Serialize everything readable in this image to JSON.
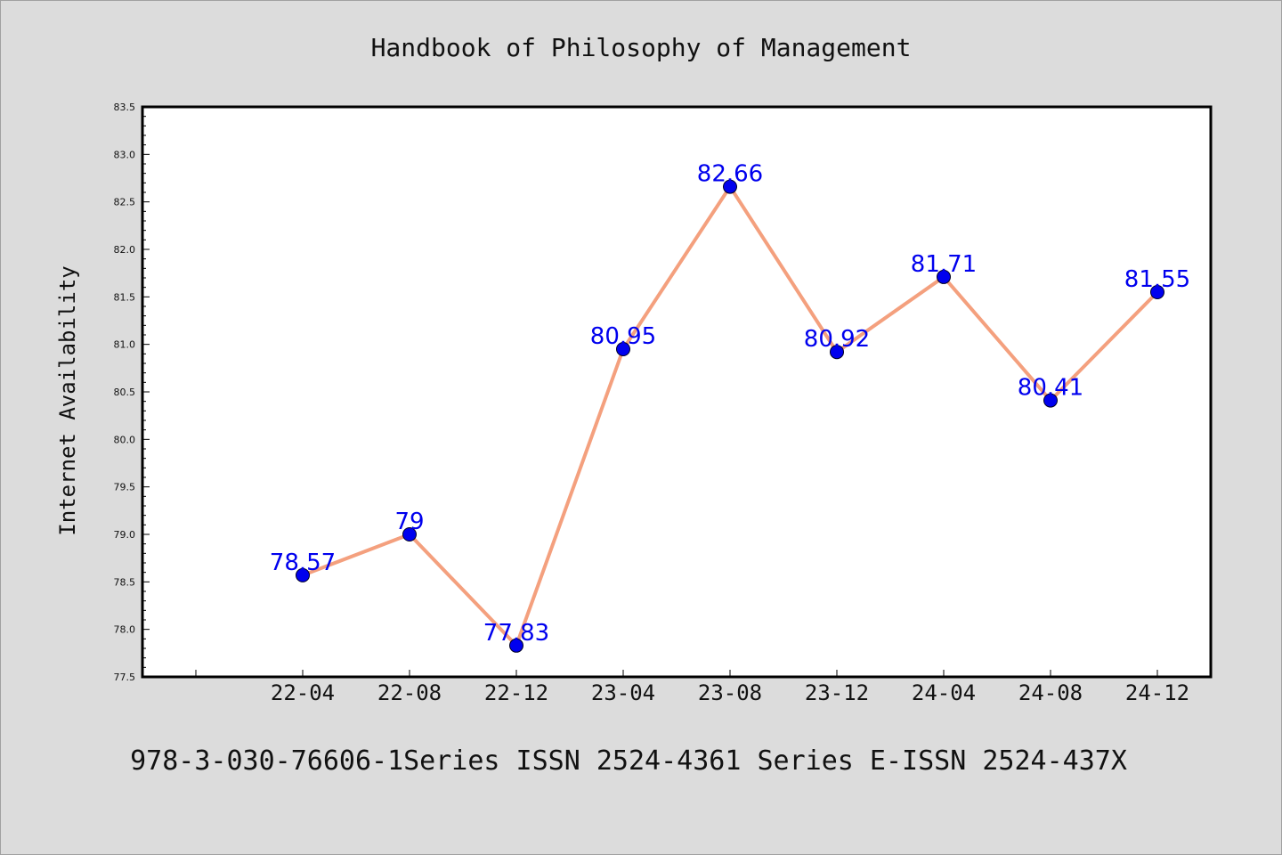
{
  "chart_data": {
    "type": "line",
    "title": "Handbook of Philosophy of Management",
    "ylabel": "Internet Availability",
    "xlabel": "",
    "footer": "978-3-030-76606-1Series ISSN 2524-4361 Series E-ISSN 2524-437X",
    "categories": [
      "22-04",
      "22-08",
      "22-12",
      "23-04",
      "23-08",
      "23-12",
      "24-04",
      "24-08",
      "24-12"
    ],
    "values": [
      78.57,
      79,
      77.83,
      80.95,
      82.66,
      80.92,
      81.71,
      80.41,
      81.55
    ],
    "data_labels": [
      "78.57",
      "79",
      "77.83",
      "80.95",
      "82.66",
      "80.92",
      "81.71",
      "80.41",
      "81.55"
    ],
    "ylim": [
      77.5,
      83.5
    ],
    "yticks": [
      "77.5",
      "78.0",
      "78.5",
      "79.0",
      "79.5",
      "80.0",
      "80.5",
      "81.0",
      "81.5",
      "82.0",
      "82.5",
      "83.0",
      "83.5"
    ],
    "grid": false,
    "colors": {
      "line": "#f4a07e",
      "marker": "#0000ee",
      "data_label": "#0000ee",
      "plot_background": "#ffffff",
      "page_background": "#dcdcdc"
    }
  }
}
